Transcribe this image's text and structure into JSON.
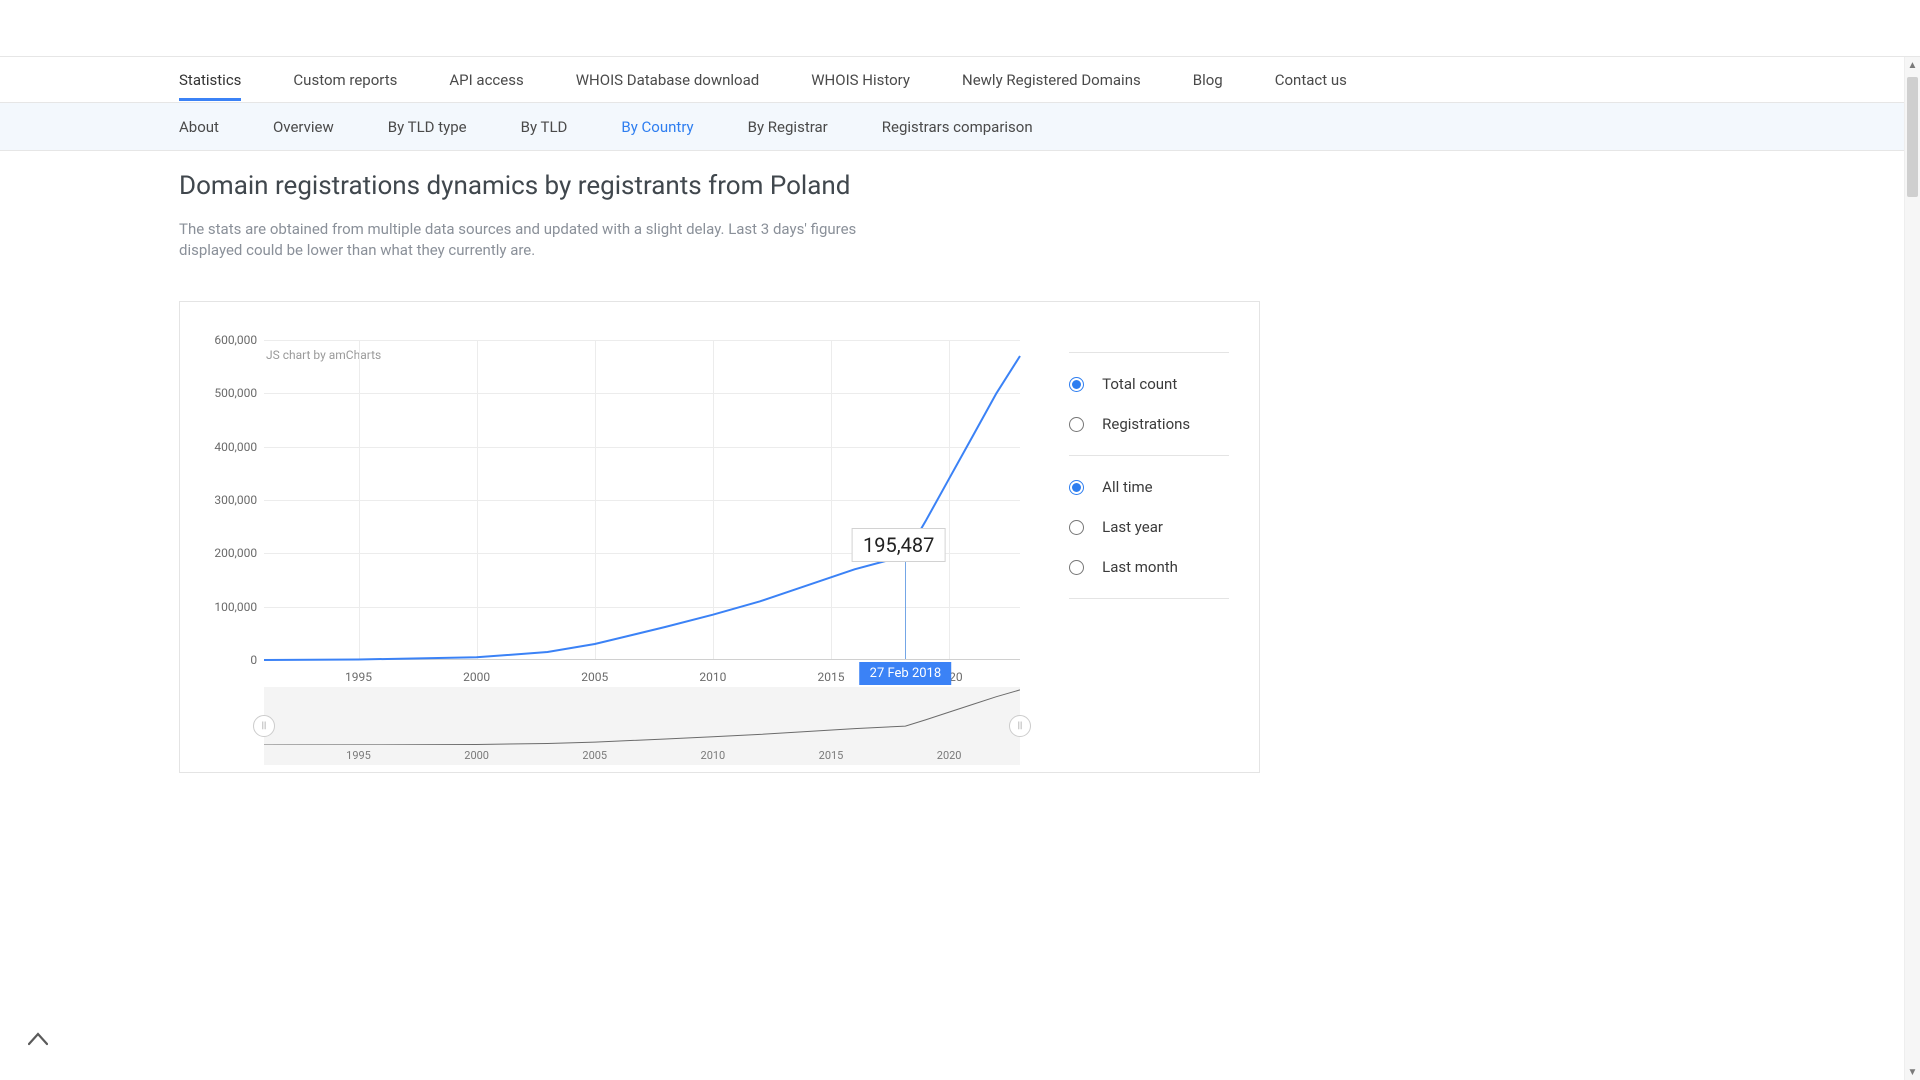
{
  "nav": {
    "primary": [
      "Statistics",
      "Custom reports",
      "API access",
      "WHOIS Database download",
      "WHOIS History",
      "Newly Registered Domains",
      "Blog",
      "Contact us"
    ],
    "primary_active": 0,
    "sub": [
      "About",
      "Overview",
      "By TLD type",
      "By TLD",
      "By Country",
      "By Registrar",
      "Registrars comparison"
    ],
    "sub_active": 4
  },
  "page": {
    "title": "Domain registrations dynamics by registrants from Poland",
    "subtitle": "The stats are obtained from multiple data sources and updated with a slight delay. Last 3 days' figures displayed could be lower than what they currently are."
  },
  "chart": {
    "type": "line",
    "credit": "JS chart by amCharts",
    "x_start_year": 1991,
    "x_end_year": 2023,
    "x_ticks": [
      1995,
      2000,
      2005,
      2010,
      2015,
      2020
    ],
    "y_min": 0,
    "y_max": 600000,
    "y_ticks": [
      0,
      100000,
      200000,
      300000,
      400000,
      500000,
      600000
    ],
    "y_tick_labels": [
      "0",
      "100,000",
      "200,000",
      "300,000",
      "400,000",
      "500,000",
      "600,000"
    ],
    "line_color": "#3b82f6",
    "line_width": 2,
    "grid_color": "#ececec",
    "axis_font_size": 12,
    "series": [
      {
        "year": 1991,
        "value": 0
      },
      {
        "year": 1995,
        "value": 1000
      },
      {
        "year": 2000,
        "value": 5000
      },
      {
        "year": 2003,
        "value": 15000
      },
      {
        "year": 2005,
        "value": 30000
      },
      {
        "year": 2008,
        "value": 62000
      },
      {
        "year": 2010,
        "value": 85000
      },
      {
        "year": 2012,
        "value": 110000
      },
      {
        "year": 2014,
        "value": 140000
      },
      {
        "year": 2016,
        "value": 170000
      },
      {
        "year": 2018.15,
        "value": 195487
      },
      {
        "year": 2019,
        "value": 260000
      },
      {
        "year": 2020,
        "value": 340000
      },
      {
        "year": 2021,
        "value": 420000
      },
      {
        "year": 2022,
        "value": 500000
      },
      {
        "year": 2023,
        "value": 570000
      }
    ],
    "tooltip": {
      "date_label": "27 Feb 2018",
      "value_label": "195,487",
      "year": 2018.15,
      "value": 195487,
      "badge_bg": "#3b82f6"
    },
    "scrubber": {
      "bg": "#f4f4f4",
      "mini_line_color": "#6b6b6b",
      "x_ticks": [
        1995,
        2000,
        2005,
        2010,
        2015,
        2020
      ]
    }
  },
  "options": {
    "metric": [
      {
        "label": "Total count",
        "checked": true
      },
      {
        "label": "Registrations",
        "checked": false
      }
    ],
    "range": [
      {
        "label": "All time",
        "checked": true
      },
      {
        "label": "Last year",
        "checked": false
      },
      {
        "label": "Last month",
        "checked": false
      }
    ]
  }
}
